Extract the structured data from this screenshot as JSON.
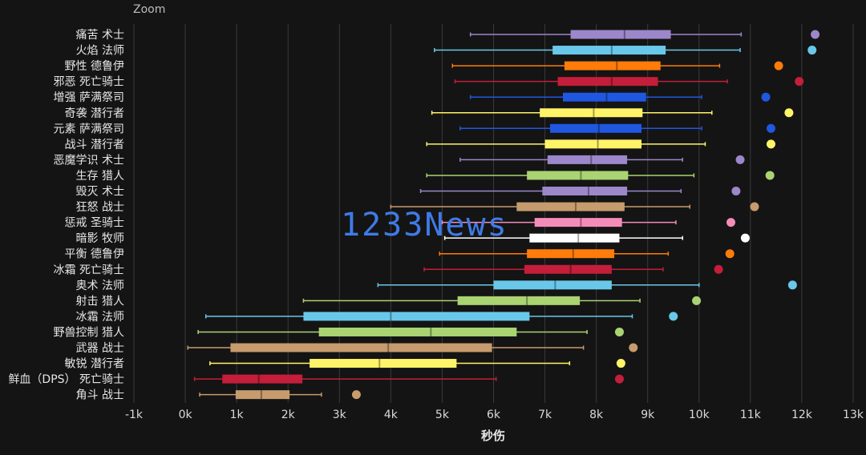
{
  "toolbar": {
    "zoom_label": "Zoom"
  },
  "watermark": "1233News",
  "chart_data": {
    "type": "boxplot",
    "xlabel": "秒伤",
    "xlim": [
      -1000,
      13000
    ],
    "x_ticks": [
      -1000,
      0,
      1000,
      2000,
      3000,
      4000,
      5000,
      6000,
      7000,
      8000,
      9000,
      10000,
      11000,
      12000,
      13000
    ],
    "x_tick_labels": [
      "-1k",
      "0k",
      "1k",
      "2k",
      "3k",
      "4k",
      "5k",
      "6k",
      "7k",
      "8k",
      "9k",
      "10k",
      "11k",
      "12k",
      "13k"
    ],
    "grid": true,
    "series": [
      {
        "name": "痛苦 术士",
        "color": "#9b87c9",
        "min": 5550,
        "q1": 7500,
        "median": 8550,
        "q3": 9450,
        "max": 10820,
        "outlier": 12260
      },
      {
        "name": "火焰 法师",
        "color": "#69c8ea",
        "min": 4850,
        "q1": 7150,
        "median": 8300,
        "q3": 9350,
        "max": 10800,
        "outlier": 12200
      },
      {
        "name": "野性 德鲁伊",
        "color": "#ff7c0a",
        "min": 5200,
        "q1": 7380,
        "median": 8400,
        "q3": 9250,
        "max": 10400,
        "outlier": 11550
      },
      {
        "name": "邪恶 死亡骑士",
        "color": "#c41e3a",
        "min": 5250,
        "q1": 7250,
        "median": 8300,
        "q3": 9200,
        "max": 10550,
        "outlier": 11950
      },
      {
        "name": "增强 萨满祭司",
        "color": "#1f57e0",
        "min": 5550,
        "q1": 7350,
        "median": 8200,
        "q3": 8970,
        "max": 10050,
        "outlier": 11300
      },
      {
        "name": "奇袭 潜行者",
        "color": "#fff468",
        "min": 4800,
        "q1": 6900,
        "median": 7950,
        "q3": 8900,
        "max": 10250,
        "outlier": 11750
      },
      {
        "name": "元素 萨满祭司",
        "color": "#1f57e0",
        "min": 5350,
        "q1": 7100,
        "median": 8050,
        "q3": 8880,
        "max": 10050,
        "outlier": 11400
      },
      {
        "name": "战斗 潜行者",
        "color": "#fff468",
        "min": 4700,
        "q1": 7000,
        "median": 8030,
        "q3": 8880,
        "max": 10120,
        "outlier": 11400
      },
      {
        "name": "恶魔学识 术士",
        "color": "#9b87c9",
        "min": 5350,
        "q1": 7050,
        "median": 7900,
        "q3": 8600,
        "max": 9680,
        "outlier": 10800
      },
      {
        "name": "生存 猎人",
        "color": "#aad372",
        "min": 4700,
        "q1": 6650,
        "median": 7700,
        "q3": 8620,
        "max": 9900,
        "outlier": 11380
      },
      {
        "name": "毁灭 术士",
        "color": "#9b87c9",
        "min": 4580,
        "q1": 6950,
        "median": 7850,
        "q3": 8600,
        "max": 9650,
        "outlier": 10720
      },
      {
        "name": "狂怒 战士",
        "color": "#c69b6d",
        "min": 4000,
        "q1": 6450,
        "median": 7600,
        "q3": 8550,
        "max": 9820,
        "outlier": 11080
      },
      {
        "name": "惩戒 圣骑士",
        "color": "#f48cba",
        "min": 5000,
        "q1": 6800,
        "median": 7700,
        "q3": 8500,
        "max": 9550,
        "outlier": 10620
      },
      {
        "name": "暗影 牧师",
        "color": "#ffffff",
        "min": 5050,
        "q1": 6700,
        "median": 7650,
        "q3": 8450,
        "max": 9680,
        "outlier": 10900
      },
      {
        "name": "平衡 德鲁伊",
        "color": "#ff7c0a",
        "min": 4950,
        "q1": 6650,
        "median": 7550,
        "q3": 8350,
        "max": 9400,
        "outlier": 10600
      },
      {
        "name": "冰霜 死亡骑士",
        "color": "#c41e3a",
        "min": 4650,
        "q1": 6600,
        "median": 7500,
        "q3": 8300,
        "max": 9300,
        "outlier": 10380
      },
      {
        "name": "奥术 法师",
        "color": "#69c8ea",
        "min": 3750,
        "q1": 6000,
        "median": 7200,
        "q3": 8300,
        "max": 10000,
        "outlier": 11820
      },
      {
        "name": "射击 猎人",
        "color": "#aad372",
        "min": 2300,
        "q1": 5300,
        "median": 6650,
        "q3": 7680,
        "max": 8850,
        "outlier": 9950
      },
      {
        "name": "冰霜 法师",
        "color": "#69c8ea",
        "min": 400,
        "q1": 2300,
        "median": 4000,
        "q3": 6700,
        "max": 8700,
        "outlier": 9500
      },
      {
        "name": "野兽控制 猎人",
        "color": "#aad372",
        "min": 250,
        "q1": 2600,
        "median": 4780,
        "q3": 6450,
        "max": 7820,
        "outlier": 8450
      },
      {
        "name": "武器 战士",
        "color": "#c69b6d",
        "min": 50,
        "q1": 880,
        "median": 3950,
        "q3": 5970,
        "max": 7750,
        "outlier": 8720
      },
      {
        "name": "敏锐 潜行者",
        "color": "#fff468",
        "min": 480,
        "q1": 2420,
        "median": 3780,
        "q3": 5280,
        "max": 7480,
        "outlier": 8480
      },
      {
        "name": "鲜血（DPS） 死亡骑士",
        "color": "#c41e3a",
        "min": 180,
        "q1": 720,
        "median": 1430,
        "q3": 2280,
        "max": 6050,
        "outlier": 8450
      },
      {
        "name": "角斗 战士",
        "color": "#c69b6d",
        "min": 280,
        "q1": 980,
        "median": 1480,
        "q3": 2030,
        "max": 2650,
        "outlier": 3330
      }
    ]
  }
}
